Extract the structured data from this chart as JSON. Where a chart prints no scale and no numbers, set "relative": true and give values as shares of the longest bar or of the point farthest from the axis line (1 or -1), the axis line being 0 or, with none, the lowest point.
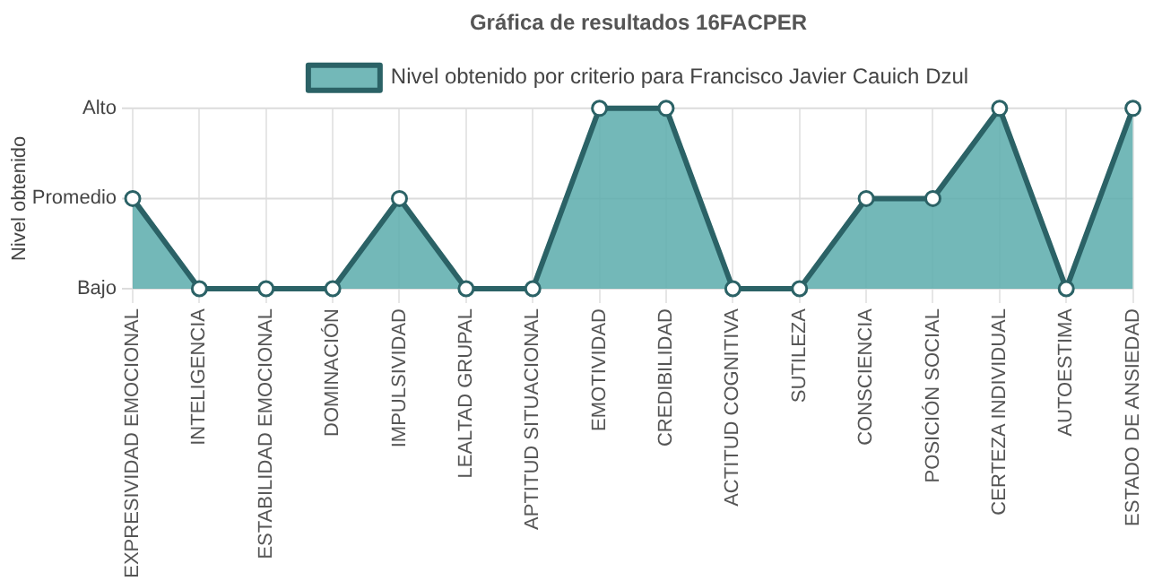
{
  "chart_data": {
    "type": "area",
    "title": "Gráfica de resultados 16FACPER",
    "ylabel": "Nivel obtenido",
    "categories": [
      "EXPRESIVIDAD EMOCIONAL",
      "INTELIGENCIA",
      "ESTABILIDAD EMOCIONAL",
      "DOMINACIÓN",
      "IMPULSIVIDAD",
      "LEALTAD GRUPAL",
      "APTITUD SITUACIONAL",
      "EMOTIVIDAD",
      "CREDIBILIDAD",
      "ACTITUD COGNITIVA",
      "SUTILEZA",
      "CONSCIENCIA",
      "POSICIÓN SOCIAL",
      "CERTEZA INDIVIDUAL",
      "AUTOESTIMA",
      "ESTADO DE ANSIEDAD"
    ],
    "series": [
      {
        "name": "Nivel obtenido por criterio para Francisco Javier Cauich Dzul",
        "color": "#2b6266",
        "values": [
          0.5,
          0,
          0,
          0,
          0.5,
          0,
          0,
          1,
          1,
          0,
          0,
          0.5,
          0.5,
          1,
          0,
          1
        ]
      }
    ],
    "relative": true,
    "ref_lines": [
      {
        "axis": "y",
        "value": 0,
        "label": "Bajo"
      },
      {
        "axis": "y",
        "value": 0.5,
        "label": "Promedio"
      },
      {
        "axis": "y",
        "value": 1,
        "label": "Alto"
      }
    ],
    "grid": "x",
    "legend": "top",
    "marker": "circle",
    "line_style": "solid"
  }
}
